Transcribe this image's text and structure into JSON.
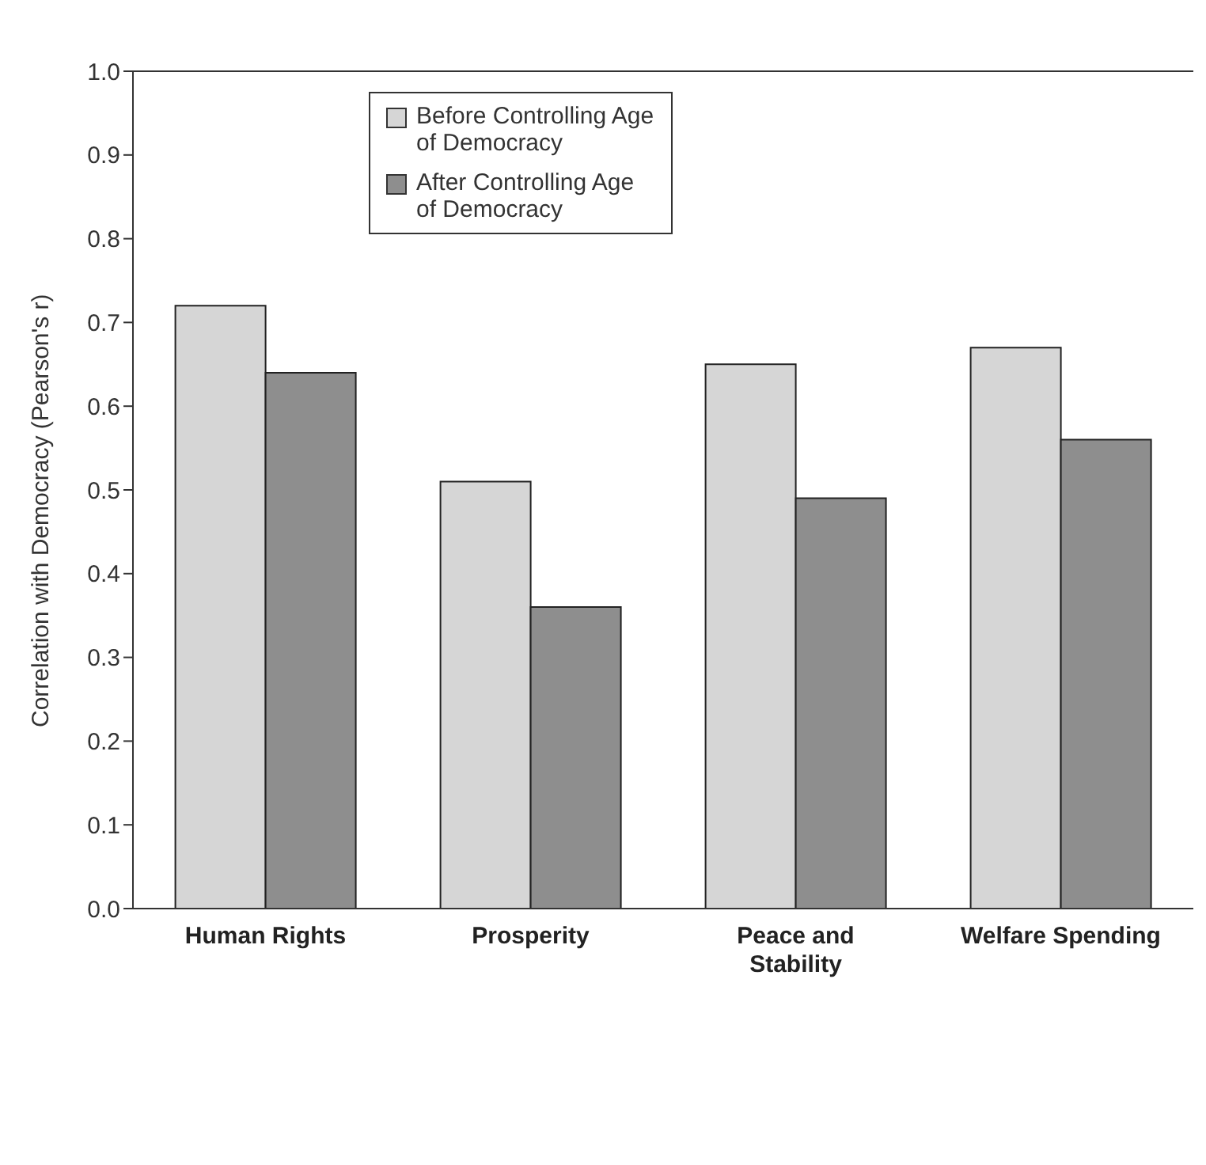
{
  "chart_data": {
    "type": "bar",
    "ylabel": "Correlation with Democracy (Pearson's r)",
    "categories": [
      "Human Rights",
      "Prosperity",
      "Peace and Stability",
      "Welfare Spending"
    ],
    "series": [
      {
        "name": "Before Controlling Age of Democracy",
        "color": "#d6d6d6",
        "values": [
          0.72,
          0.51,
          0.65,
          0.67
        ]
      },
      {
        "name": "After Controlling Age of Democracy",
        "color": "#8e8e8e",
        "values": [
          0.64,
          0.36,
          0.49,
          0.56
        ]
      }
    ],
    "ylim": [
      0,
      1
    ],
    "yticks": [
      {
        "value": 0,
        "label": "0.0"
      },
      {
        "value": 0.1,
        "label": "0.1"
      },
      {
        "value": 0.2,
        "label": "0.2"
      },
      {
        "value": 0.3,
        "label": "0.3"
      },
      {
        "value": 0.4,
        "label": "0.4"
      },
      {
        "value": 0.5,
        "label": "0.5"
      },
      {
        "value": 0.6,
        "label": "0.6"
      },
      {
        "value": 0.7,
        "label": "0.7"
      },
      {
        "value": 0.8,
        "label": "0.8"
      },
      {
        "value": 0.9,
        "label": "0.9"
      },
      {
        "value": 1,
        "label": "1.0"
      }
    ],
    "grid": false,
    "legend": "top left"
  }
}
